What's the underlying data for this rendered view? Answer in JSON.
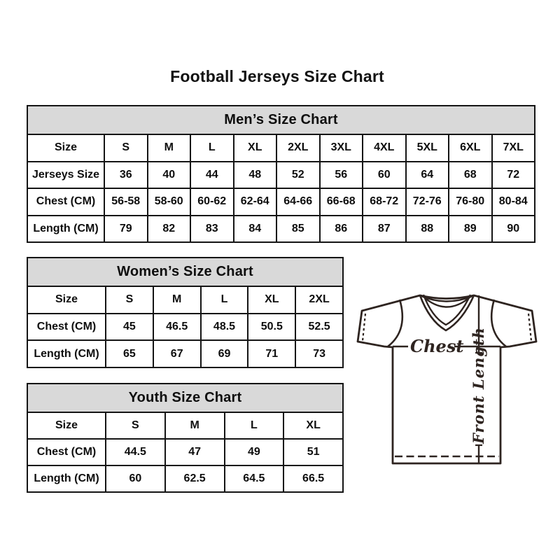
{
  "title": "Football Jerseys Size Chart",
  "colors": {
    "background": "#ffffff",
    "table_header_bg": "#d9d9d9",
    "table_border": "#151515",
    "text": "#0e0e0e",
    "line_art": "#2e2420"
  },
  "chart_data": [
    {
      "type": "table",
      "title": "Men’s Size Chart",
      "columns": [
        "Size",
        "S",
        "M",
        "L",
        "XL",
        "2XL",
        "3XL",
        "4XL",
        "5XL",
        "6XL",
        "7XL"
      ],
      "rows": [
        [
          "Jerseys Size",
          "36",
          "40",
          "44",
          "48",
          "52",
          "56",
          "60",
          "64",
          "68",
          "72"
        ],
        [
          "Chest (CM)",
          "56-58",
          "58-60",
          "60-62",
          "62-64",
          "64-66",
          "66-68",
          "68-72",
          "72-76",
          "76-80",
          "80-84"
        ],
        [
          "Length (CM)",
          "79",
          "82",
          "83",
          "84",
          "85",
          "86",
          "87",
          "88",
          "89",
          "90"
        ]
      ]
    },
    {
      "type": "table",
      "title": "Women’s Size Chart",
      "columns": [
        "Size",
        "S",
        "M",
        "L",
        "XL",
        "2XL"
      ],
      "rows": [
        [
          "Chest (CM)",
          "45",
          "46.5",
          "48.5",
          "50.5",
          "52.5"
        ],
        [
          "Length (CM)",
          "65",
          "67",
          "69",
          "71",
          "73"
        ]
      ]
    },
    {
      "type": "table",
      "title": "Youth Size Chart",
      "columns": [
        "Size",
        "S",
        "M",
        "L",
        "XL"
      ],
      "rows": [
        [
          "Chest (CM)",
          "44.5",
          "47",
          "49",
          "51"
        ],
        [
          "Length (CM)",
          "60",
          "62.5",
          "64.5",
          "66.5"
        ]
      ]
    }
  ],
  "diagram": {
    "chest_label": "Chest",
    "front_length_label": "Front Length"
  }
}
